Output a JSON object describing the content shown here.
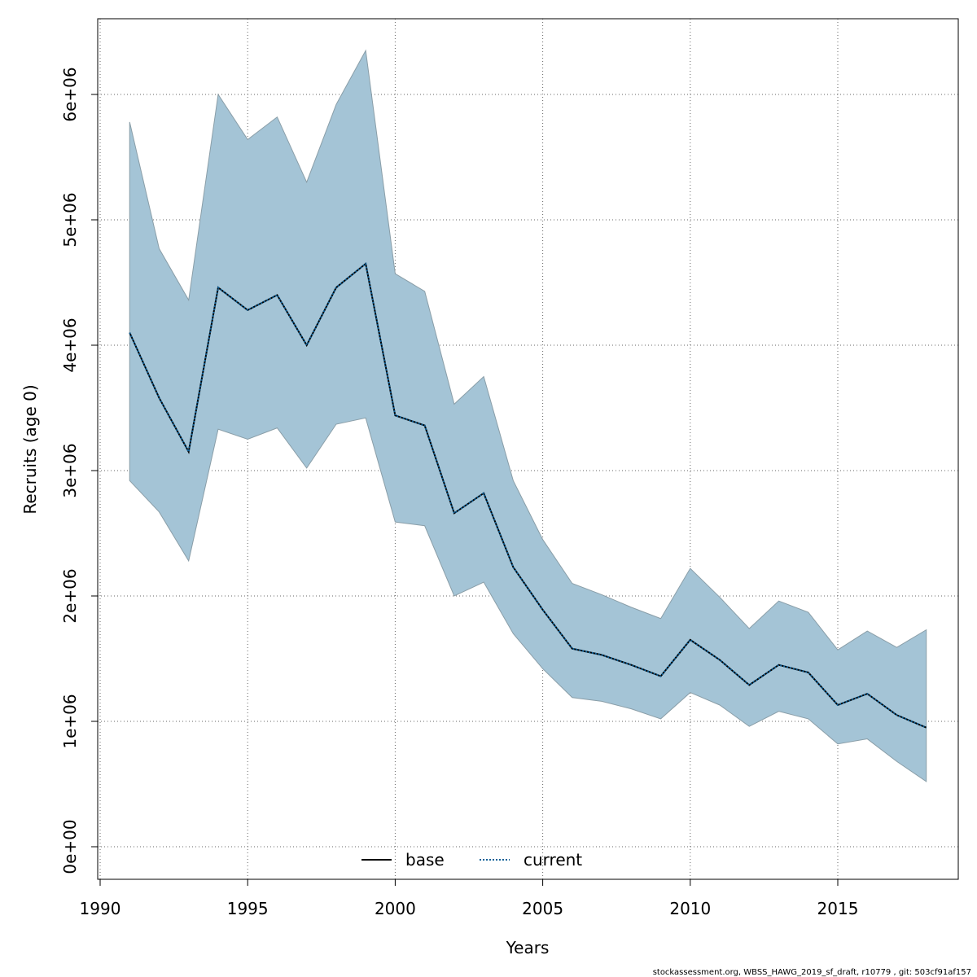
{
  "chart_data": {
    "type": "area",
    "xlabel": "Years",
    "ylabel": "Recruits (age 0)",
    "xlim": [
      1990,
      2019
    ],
    "ylim": [
      0,
      6500000
    ],
    "x_ticks": [
      1990,
      1995,
      2000,
      2005,
      2010,
      2015
    ],
    "x_tick_labels": [
      "1990",
      "1995",
      "2000",
      "2005",
      "2010",
      "2015"
    ],
    "y_ticks": [
      0,
      1000000,
      2000000,
      3000000,
      4000000,
      5000000,
      6000000
    ],
    "y_tick_labels": [
      "0e+00",
      "1e+06",
      "2e+06",
      "3e+06",
      "4e+06",
      "5e+06",
      "6e+06"
    ],
    "grid": true,
    "legend_position": "bottom-center",
    "x": [
      1991,
      1992,
      1993,
      1994,
      1995,
      1996,
      1997,
      1998,
      1999,
      2000,
      2001,
      2002,
      2003,
      2004,
      2005,
      2006,
      2007,
      2008,
      2009,
      2010,
      2011,
      2012,
      2013,
      2014,
      2015,
      2016,
      2017,
      2018
    ],
    "series": [
      {
        "name": "base",
        "style": "solid",
        "color": "#000000",
        "values": [
          4100000,
          3580000,
          3150000,
          4460000,
          4280000,
          4400000,
          4000000,
          4460000,
          4650000,
          3440000,
          3360000,
          2660000,
          2820000,
          2230000,
          1890000,
          1580000,
          1530000,
          1450000,
          1360000,
          1650000,
          1490000,
          1290000,
          1450000,
          1390000,
          1130000,
          1220000,
          1050000,
          950000
        ]
      },
      {
        "name": "current",
        "style": "dotted",
        "color": "#0e5f96",
        "values": [
          4100000,
          3580000,
          3150000,
          4460000,
          4280000,
          4400000,
          4000000,
          4460000,
          4650000,
          3440000,
          3360000,
          2660000,
          2820000,
          2230000,
          1890000,
          1580000,
          1530000,
          1450000,
          1360000,
          1650000,
          1490000,
          1290000,
          1450000,
          1390000,
          1130000,
          1220000,
          1050000,
          950000
        ],
        "ci_lower": [
          2920000,
          2670000,
          2280000,
          3330000,
          3250000,
          3340000,
          3020000,
          3370000,
          3420000,
          2590000,
          2560000,
          2000000,
          2110000,
          1700000,
          1420000,
          1190000,
          1160000,
          1100000,
          1020000,
          1230000,
          1130000,
          960000,
          1080000,
          1020000,
          820000,
          860000,
          680000,
          520000
        ],
        "ci_upper": [
          5780000,
          4770000,
          4360000,
          6000000,
          5640000,
          5820000,
          5300000,
          5920000,
          6350000,
          4570000,
          4430000,
          3530000,
          3750000,
          2920000,
          2450000,
          2100000,
          2010000,
          1910000,
          1820000,
          2220000,
          1990000,
          1740000,
          1960000,
          1870000,
          1570000,
          1720000,
          1590000,
          1730000
        ]
      }
    ],
    "ci_fill_color": "#a4c4d6",
    "ci_edge_color": "#8a9ea8"
  },
  "legend": {
    "items": [
      {
        "label": "base"
      },
      {
        "label": "current"
      }
    ]
  },
  "footer": {
    "text": "stockassessment.org, WBSS_HAWG_2019_sf_draft, r10779 , git: 503cf91af157"
  }
}
